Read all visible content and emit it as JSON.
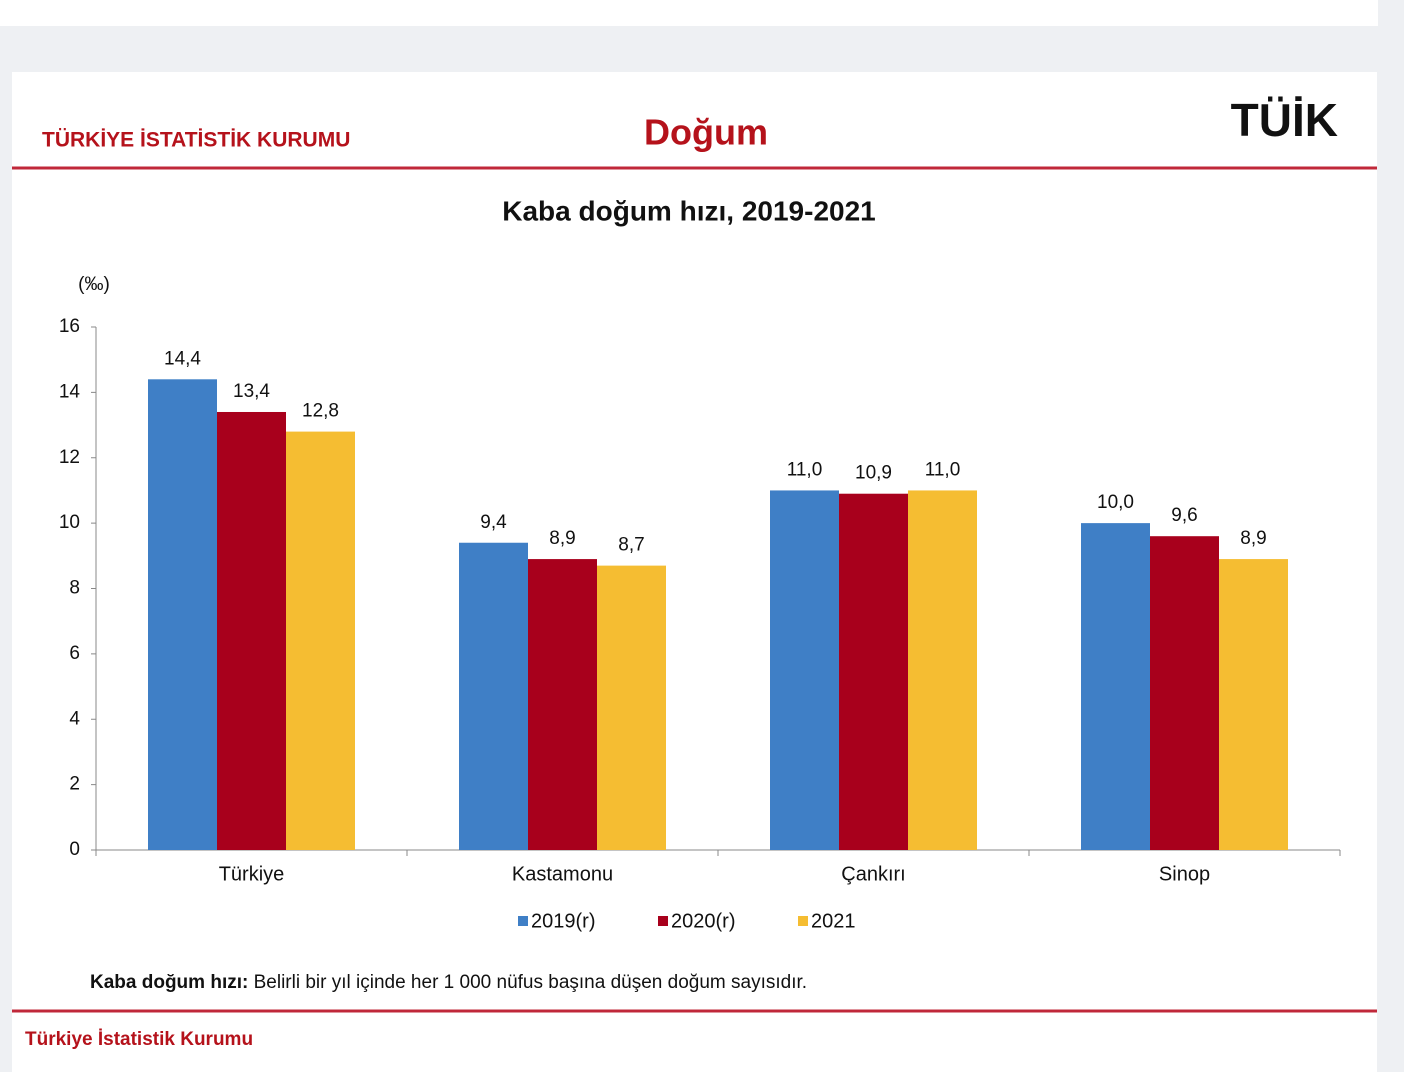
{
  "header": {
    "org": "TÜRKİYE İSTATİSTİK KURUMU",
    "title": "Doğum",
    "logo": "TÜİK"
  },
  "chart_data": {
    "type": "bar",
    "title": "Kaba doğum hızı, 2019-2021",
    "y_unit": "(‰)",
    "categories": [
      "Türkiye",
      "Kastamonu",
      "Çankırı",
      "Sinop"
    ],
    "series": [
      {
        "name": "2019(r)",
        "color": "#3f7fc6",
        "values": [
          14.4,
          9.4,
          11.0,
          10.0
        ],
        "value_labels": [
          "14,4",
          "9,4",
          "11,0",
          "10,0"
        ]
      },
      {
        "name": "2020(r)",
        "color": "#a8001c",
        "values": [
          13.4,
          8.9,
          10.9,
          9.6
        ],
        "value_labels": [
          "13,4",
          "8,9",
          "10,9",
          "9,6"
        ]
      },
      {
        "name": "2021",
        "color": "#f5bd32",
        "values": [
          12.8,
          8.7,
          11.0,
          8.9
        ],
        "value_labels": [
          "12,8",
          "8,7",
          "11,0",
          "8,9"
        ]
      }
    ],
    "ylim": [
      0,
      16
    ],
    "yticks": [
      0,
      2,
      4,
      6,
      8,
      10,
      12,
      14,
      16
    ],
    "legend": "bottom"
  },
  "footnote": {
    "term": "Kaba doğum hızı:",
    "text": "Belirli bir yıl içinde her 1 000 nüfus başına düşen doğum sayısıdır."
  },
  "footer": {
    "text": "Türkiye İstatistik Kurumu"
  }
}
